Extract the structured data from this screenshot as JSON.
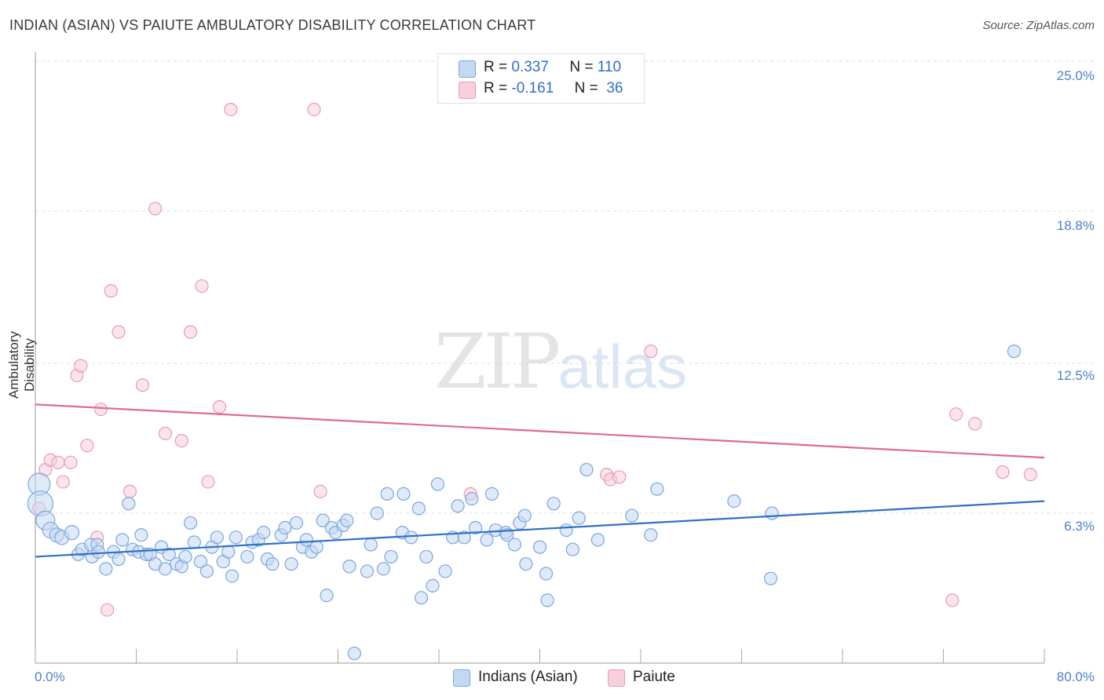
{
  "title": "INDIAN (ASIAN) VS PAIUTE AMBULATORY DISABILITY CORRELATION CHART",
  "source": "Source: ZipAtlas.com",
  "watermark": {
    "left": "ZIP",
    "right": "atlas"
  },
  "colors": {
    "blue_fill": "#c5d8f3",
    "blue_stroke": "#7aa6e0",
    "blue_line": "#2f6fc8",
    "pink_fill": "#f8cfdc",
    "pink_stroke": "#e999b4",
    "pink_line": "#e06a90",
    "tick_text": "#4a7fcc",
    "grid": "#dddddd"
  },
  "legend": {
    "rows": [
      {
        "r_label": "R =",
        "r_value": "0.337",
        "n_label": "N =",
        "n_value": "110"
      },
      {
        "r_label": "R =",
        "r_value": "-0.161",
        "n_label": "N =",
        "n_value": "36"
      }
    ]
  },
  "chart_data": {
    "type": "scatter",
    "title": "INDIAN (ASIAN) VS PAIUTE AMBULATORY DISABILITY CORRELATION CHART",
    "xlabel": "",
    "ylabel": "Ambulatory Disability",
    "xlim": [
      0,
      80
    ],
    "ylim": [
      0,
      25
    ],
    "x_tick_labels": [
      "0.0%",
      "80.0%"
    ],
    "y_ticks": [
      6.3,
      12.5,
      18.8,
      25.0
    ],
    "y_tick_labels": [
      "6.3%",
      "12.5%",
      "18.8%",
      "25.0%"
    ],
    "grid": true,
    "legend_position": "bottom",
    "series": [
      {
        "name": "Indians (Asian)",
        "color": "#7aa6e0",
        "trend": {
          "x": [
            0,
            80
          ],
          "y": [
            4.5,
            6.8
          ]
        },
        "points": [
          [
            0.3,
            7.5,
            14
          ],
          [
            0.4,
            6.7,
            16
          ],
          [
            0.8,
            6.0,
            12
          ],
          [
            1.2,
            5.6,
            10
          ],
          [
            1.7,
            5.4,
            9
          ],
          [
            2.1,
            5.3,
            9
          ],
          [
            2.9,
            5.5,
            9
          ],
          [
            3.4,
            4.6,
            8
          ],
          [
            3.7,
            4.8,
            8
          ],
          [
            4.4,
            5.0,
            8
          ],
          [
            4.5,
            4.5,
            8
          ],
          [
            4.9,
            5.0,
            8
          ],
          [
            5.0,
            4.7,
            8
          ],
          [
            5.6,
            4.0,
            8
          ],
          [
            6.2,
            4.7,
            8
          ],
          [
            6.6,
            4.4,
            8
          ],
          [
            6.9,
            5.2,
            8
          ],
          [
            7.4,
            6.7,
            8
          ],
          [
            7.7,
            4.8,
            8
          ],
          [
            8.2,
            4.7,
            8
          ],
          [
            8.4,
            5.4,
            8
          ],
          [
            8.8,
            4.6,
            8
          ],
          [
            9.1,
            4.6,
            8
          ],
          [
            9.5,
            4.2,
            8
          ],
          [
            10.0,
            4.9,
            8
          ],
          [
            10.3,
            4.0,
            8
          ],
          [
            10.6,
            4.6,
            8
          ],
          [
            11.2,
            4.2,
            8
          ],
          [
            11.6,
            4.1,
            8
          ],
          [
            11.9,
            4.5,
            8
          ],
          [
            12.3,
            5.9,
            8
          ],
          [
            12.6,
            5.1,
            8
          ],
          [
            13.1,
            4.3,
            8
          ],
          [
            13.6,
            3.9,
            8
          ],
          [
            14.0,
            4.9,
            8
          ],
          [
            14.4,
            5.3,
            8
          ],
          [
            14.9,
            4.3,
            8
          ],
          [
            15.3,
            4.7,
            8
          ],
          [
            15.6,
            3.7,
            8
          ],
          [
            15.9,
            5.3,
            8
          ],
          [
            16.8,
            4.5,
            8
          ],
          [
            17.2,
            5.1,
            8
          ],
          [
            17.7,
            5.2,
            8
          ],
          [
            18.1,
            5.5,
            8
          ],
          [
            18.4,
            4.4,
            8
          ],
          [
            18.8,
            4.2,
            8
          ],
          [
            19.5,
            5.4,
            8
          ],
          [
            19.8,
            5.7,
            8
          ],
          [
            20.3,
            4.2,
            8
          ],
          [
            20.7,
            5.9,
            8
          ],
          [
            21.2,
            4.9,
            8
          ],
          [
            21.5,
            5.2,
            8
          ],
          [
            21.9,
            4.7,
            8
          ],
          [
            22.3,
            4.9,
            8
          ],
          [
            22.8,
            6.0,
            8
          ],
          [
            23.1,
            2.9,
            8
          ],
          [
            23.5,
            5.7,
            8
          ],
          [
            23.8,
            5.5,
            8
          ],
          [
            24.4,
            5.8,
            8
          ],
          [
            24.7,
            6.0,
            8
          ],
          [
            24.9,
            4.1,
            8
          ],
          [
            25.3,
            0.5,
            8
          ],
          [
            26.3,
            3.9,
            8
          ],
          [
            26.6,
            5.0,
            8
          ],
          [
            27.1,
            6.3,
            8
          ],
          [
            27.6,
            4.0,
            8
          ],
          [
            27.9,
            7.1,
            8
          ],
          [
            28.2,
            4.5,
            8
          ],
          [
            29.1,
            5.5,
            8
          ],
          [
            29.2,
            7.1,
            8
          ],
          [
            29.8,
            5.3,
            8
          ],
          [
            30.4,
            6.5,
            8
          ],
          [
            30.6,
            2.8,
            8
          ],
          [
            31.0,
            4.5,
            8
          ],
          [
            31.5,
            3.3,
            8
          ],
          [
            31.9,
            7.5,
            8
          ],
          [
            32.5,
            3.9,
            8
          ],
          [
            33.1,
            5.3,
            8
          ],
          [
            33.5,
            6.6,
            8
          ],
          [
            34.0,
            5.3,
            8
          ],
          [
            34.6,
            6.9,
            8
          ],
          [
            34.9,
            5.7,
            8
          ],
          [
            35.8,
            5.2,
            8
          ],
          [
            36.2,
            7.1,
            8
          ],
          [
            36.5,
            5.6,
            8
          ],
          [
            37.3,
            5.5,
            8
          ],
          [
            37.4,
            5.4,
            8
          ],
          [
            38.0,
            5.0,
            8
          ],
          [
            38.4,
            5.9,
            8
          ],
          [
            38.8,
            6.2,
            8
          ],
          [
            38.9,
            4.2,
            8
          ],
          [
            40.0,
            4.9,
            8
          ],
          [
            40.5,
            3.8,
            8
          ],
          [
            40.6,
            2.7,
            8
          ],
          [
            41.1,
            6.7,
            8
          ],
          [
            42.1,
            5.6,
            8
          ],
          [
            42.6,
            4.8,
            8
          ],
          [
            43.1,
            6.1,
            8
          ],
          [
            43.7,
            8.1,
            8
          ],
          [
            44.6,
            5.2,
            8
          ],
          [
            47.3,
            6.2,
            8
          ],
          [
            48.8,
            5.4,
            8
          ],
          [
            49.3,
            7.3,
            8
          ],
          [
            55.4,
            6.8,
            8
          ],
          [
            58.3,
            3.6,
            8
          ],
          [
            58.4,
            6.3,
            8
          ],
          [
            77.6,
            13.0,
            8
          ]
        ]
      },
      {
        "name": "Paiute",
        "color": "#e999b4",
        "trend": {
          "x": [
            0,
            80
          ],
          "y": [
            10.8,
            8.6
          ]
        },
        "points": [
          [
            0.3,
            6.5,
            8
          ],
          [
            0.8,
            8.1,
            8
          ],
          [
            1.2,
            8.5,
            8
          ],
          [
            1.8,
            8.4,
            8
          ],
          [
            2.2,
            7.6,
            8
          ],
          [
            2.8,
            8.4,
            8
          ],
          [
            3.3,
            12.0,
            8
          ],
          [
            3.6,
            12.4,
            8
          ],
          [
            4.1,
            9.1,
            8
          ],
          [
            4.9,
            5.3,
            8
          ],
          [
            5.2,
            10.6,
            8
          ],
          [
            5.7,
            2.3,
            8
          ],
          [
            6.0,
            15.5,
            8
          ],
          [
            6.6,
            13.8,
            8
          ],
          [
            7.5,
            7.2,
            8
          ],
          [
            8.5,
            11.6,
            8
          ],
          [
            9.5,
            18.9,
            8
          ],
          [
            10.3,
            9.6,
            8
          ],
          [
            11.6,
            9.3,
            8
          ],
          [
            12.3,
            13.8,
            8
          ],
          [
            13.2,
            15.7,
            8
          ],
          [
            13.7,
            7.6,
            8
          ],
          [
            14.6,
            10.7,
            8
          ],
          [
            15.5,
            23.0,
            8
          ],
          [
            22.1,
            23.0,
            8
          ],
          [
            22.6,
            7.2,
            8
          ],
          [
            34.5,
            7.1,
            8
          ],
          [
            45.3,
            7.9,
            8
          ],
          [
            45.6,
            7.7,
            8
          ],
          [
            46.3,
            7.8,
            8
          ],
          [
            48.8,
            13.0,
            8
          ],
          [
            72.7,
            2.7,
            8
          ],
          [
            73.0,
            10.4,
            8
          ],
          [
            74.5,
            10.0,
            8
          ],
          [
            76.7,
            8.0,
            8
          ],
          [
            78.9,
            7.9,
            8
          ]
        ]
      }
    ]
  }
}
